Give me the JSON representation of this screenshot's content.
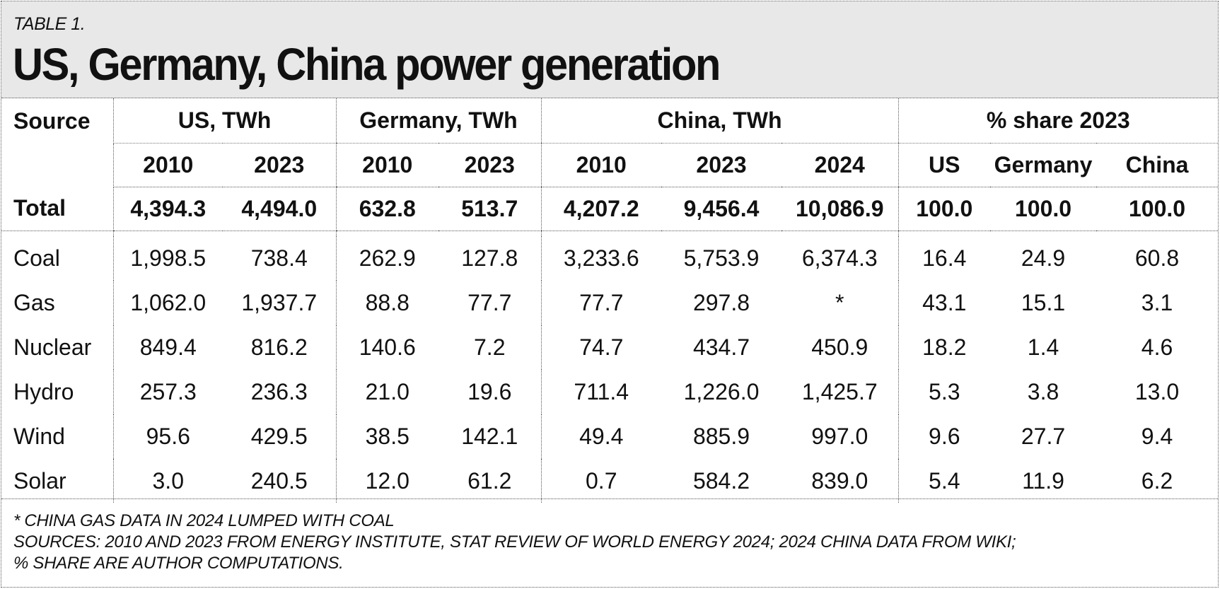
{
  "table_label": "TABLE 1.",
  "title": "US, Germany, China power generation",
  "columns": {
    "source": "Source",
    "groups": [
      "US, TWh",
      "Germany, TWh",
      "China, TWh",
      "% share 2023"
    ],
    "years": [
      "2010",
      "2023",
      "2010",
      "2023",
      "2010",
      "2023",
      "2024",
      "US",
      "Germany",
      "China"
    ]
  },
  "total_row": {
    "label": "Total",
    "values": [
      "4,394.3",
      "4,494.0",
      "632.8",
      "513.7",
      "4,207.2",
      "9,456.4",
      "10,086.9",
      "100.0",
      "100.0",
      "100.0"
    ]
  },
  "rows": [
    {
      "label": "Coal",
      "values": [
        "1,998.5",
        "738.4",
        "262.9",
        "127.8",
        "3,233.6",
        "5,753.9",
        "6,374.3",
        "16.4",
        "24.9",
        "60.8"
      ]
    },
    {
      "label": "Gas",
      "values": [
        "1,062.0",
        "1,937.7",
        "88.8",
        "77.7",
        "77.7",
        "297.8",
        "*",
        "43.1",
        "15.1",
        "3.1"
      ]
    },
    {
      "label": "Nuclear",
      "values": [
        "849.4",
        "816.2",
        "140.6",
        "7.2",
        "74.7",
        "434.7",
        "450.9",
        "18.2",
        "1.4",
        "4.6"
      ]
    },
    {
      "label": "Hydro",
      "values": [
        "257.3",
        "236.3",
        "21.0",
        "19.6",
        "711.4",
        "1,226.0",
        "1,425.7",
        "5.3",
        "3.8",
        "13.0"
      ]
    },
    {
      "label": "Wind",
      "values": [
        "95.6",
        "429.5",
        "38.5",
        "142.1",
        "49.4",
        "885.9",
        "997.0",
        "9.6",
        "27.7",
        "9.4"
      ]
    },
    {
      "label": "Solar",
      "values": [
        "3.0",
        "240.5",
        "12.0",
        "61.2",
        "0.7",
        "584.2",
        "839.0",
        "5.4",
        "11.9",
        "6.2"
      ]
    }
  ],
  "footnotes": [
    "* CHINA GAS DATA IN 2024 LUMPED WITH COAL",
    "SOURCES: 2010 AND 2023 FROM ENERGY INSTITUTE, STAT REVIEW OF WORLD ENERGY 2024; 2024 CHINA DATA FROM WIKI;",
    "% SHARE ARE AUTHOR COMPUTATIONS."
  ]
}
